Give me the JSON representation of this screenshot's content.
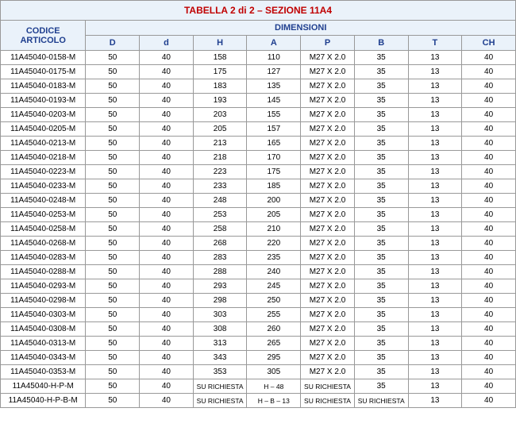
{
  "title": "TABELLA 2 di 2 – SEZIONE 11A4",
  "headers": {
    "codice": "CODICE ARTICOLO",
    "dimensioni": "DIMENSIONI",
    "cols": [
      "D",
      "d",
      "H",
      "A",
      "P",
      "B",
      "T",
      "CH"
    ]
  },
  "colors": {
    "header_bg": "#eaf2fa",
    "title_text": "#c00000",
    "header_text": "#1f3f8f",
    "border": "#999999"
  },
  "rows": [
    {
      "code": "11A45040-0158-M",
      "D": "50",
      "d": "40",
      "H": "158",
      "A": "110",
      "P": "M27 X 2.0",
      "B": "35",
      "T": "13",
      "CH": "40"
    },
    {
      "code": "11A45040-0175-M",
      "D": "50",
      "d": "40",
      "H": "175",
      "A": "127",
      "P": "M27 X 2.0",
      "B": "35",
      "T": "13",
      "CH": "40"
    },
    {
      "code": "11A45040-0183-M",
      "D": "50",
      "d": "40",
      "H": "183",
      "A": "135",
      "P": "M27 X 2.0",
      "B": "35",
      "T": "13",
      "CH": "40"
    },
    {
      "code": "11A45040-0193-M",
      "D": "50",
      "d": "40",
      "H": "193",
      "A": "145",
      "P": "M27 X 2.0",
      "B": "35",
      "T": "13",
      "CH": "40"
    },
    {
      "code": "11A45040-0203-M",
      "D": "50",
      "d": "40",
      "H": "203",
      "A": "155",
      "P": "M27 X 2.0",
      "B": "35",
      "T": "13",
      "CH": "40"
    },
    {
      "code": "11A45040-0205-M",
      "D": "50",
      "d": "40",
      "H": "205",
      "A": "157",
      "P": "M27 X 2.0",
      "B": "35",
      "T": "13",
      "CH": "40"
    },
    {
      "code": "11A45040-0213-M",
      "D": "50",
      "d": "40",
      "H": "213",
      "A": "165",
      "P": "M27 X 2.0",
      "B": "35",
      "T": "13",
      "CH": "40"
    },
    {
      "code": "11A45040-0218-M",
      "D": "50",
      "d": "40",
      "H": "218",
      "A": "170",
      "P": "M27 X 2.0",
      "B": "35",
      "T": "13",
      "CH": "40"
    },
    {
      "code": "11A45040-0223-M",
      "D": "50",
      "d": "40",
      "H": "223",
      "A": "175",
      "P": "M27 X 2.0",
      "B": "35",
      "T": "13",
      "CH": "40"
    },
    {
      "code": "11A45040-0233-M",
      "D": "50",
      "d": "40",
      "H": "233",
      "A": "185",
      "P": "M27 X 2.0",
      "B": "35",
      "T": "13",
      "CH": "40"
    },
    {
      "code": "11A45040-0248-M",
      "D": "50",
      "d": "40",
      "H": "248",
      "A": "200",
      "P": "M27 X 2.0",
      "B": "35",
      "T": "13",
      "CH": "40"
    },
    {
      "code": "11A45040-0253-M",
      "D": "50",
      "d": "40",
      "H": "253",
      "A": "205",
      "P": "M27 X 2.0",
      "B": "35",
      "T": "13",
      "CH": "40"
    },
    {
      "code": "11A45040-0258-M",
      "D": "50",
      "d": "40",
      "H": "258",
      "A": "210",
      "P": "M27 X 2.0",
      "B": "35",
      "T": "13",
      "CH": "40"
    },
    {
      "code": "11A45040-0268-M",
      "D": "50",
      "d": "40",
      "H": "268",
      "A": "220",
      "P": "M27 X 2.0",
      "B": "35",
      "T": "13",
      "CH": "40"
    },
    {
      "code": "11A45040-0283-M",
      "D": "50",
      "d": "40",
      "H": "283",
      "A": "235",
      "P": "M27 X 2.0",
      "B": "35",
      "T": "13",
      "CH": "40"
    },
    {
      "code": "11A45040-0288-M",
      "D": "50",
      "d": "40",
      "H": "288",
      "A": "240",
      "P": "M27 X 2.0",
      "B": "35",
      "T": "13",
      "CH": "40"
    },
    {
      "code": "11A45040-0293-M",
      "D": "50",
      "d": "40",
      "H": "293",
      "A": "245",
      "P": "M27 X 2.0",
      "B": "35",
      "T": "13",
      "CH": "40"
    },
    {
      "code": "11A45040-0298-M",
      "D": "50",
      "d": "40",
      "H": "298",
      "A": "250",
      "P": "M27 X 2.0",
      "B": "35",
      "T": "13",
      "CH": "40"
    },
    {
      "code": "11A45040-0303-M",
      "D": "50",
      "d": "40",
      "H": "303",
      "A": "255",
      "P": "M27 X 2.0",
      "B": "35",
      "T": "13",
      "CH": "40"
    },
    {
      "code": "11A45040-0308-M",
      "D": "50",
      "d": "40",
      "H": "308",
      "A": "260",
      "P": "M27 X 2.0",
      "B": "35",
      "T": "13",
      "CH": "40"
    },
    {
      "code": "11A45040-0313-M",
      "D": "50",
      "d": "40",
      "H": "313",
      "A": "265",
      "P": "M27 X 2.0",
      "B": "35",
      "T": "13",
      "CH": "40"
    },
    {
      "code": "11A45040-0343-M",
      "D": "50",
      "d": "40",
      "H": "343",
      "A": "295",
      "P": "M27 X 2.0",
      "B": "35",
      "T": "13",
      "CH": "40"
    },
    {
      "code": "11A45040-0353-M",
      "D": "50",
      "d": "40",
      "H": "353",
      "A": "305",
      "P": "M27 X 2.0",
      "B": "35",
      "T": "13",
      "CH": "40"
    },
    {
      "code": "11A45040-H-P-M",
      "D": "50",
      "d": "40",
      "H": "SU RICHIESTA",
      "A": "H – 48",
      "P": "SU RICHIESTA",
      "B": "35",
      "T": "13",
      "CH": "40",
      "small": [
        "H",
        "A",
        "P"
      ]
    },
    {
      "code": "11A45040-H-P-B-M",
      "D": "50",
      "d": "40",
      "H": "SU RICHIESTA",
      "A": "H – B – 13",
      "P": "SU RICHIESTA",
      "B": "SU RICHIESTA",
      "T": "13",
      "CH": "40",
      "small": [
        "H",
        "A",
        "P",
        "B"
      ]
    }
  ]
}
